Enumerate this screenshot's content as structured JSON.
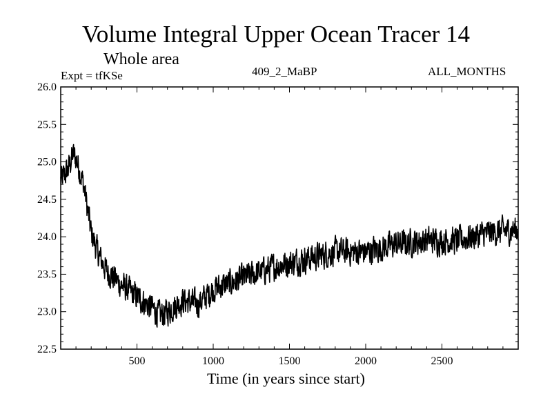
{
  "chart_data": {
    "type": "line",
    "title": "Volume Integral Upper Ocean Tracer 14",
    "subtitle": "Whole area",
    "annotations": {
      "expt": "Expt = tfKSe",
      "run": "409_2_MaBP",
      "months": "ALL_MONTHS"
    },
    "xlabel": "Time (in years since start)",
    "ylabel": "",
    "xlim": [
      0,
      3000
    ],
    "ylim": [
      22.5,
      26.0
    ],
    "xticks": [
      500,
      1000,
      1500,
      2000,
      2500
    ],
    "xtick_labels": [
      "500",
      "1000",
      "1500",
      "2000",
      "2500"
    ],
    "yticks": [
      22.5,
      23.0,
      23.5,
      24.0,
      24.5,
      25.0,
      25.5,
      26.0
    ],
    "ytick_labels": [
      "22.5",
      "23.0",
      "23.5",
      "24.0",
      "24.5",
      "25.0",
      "25.5",
      "26.0"
    ],
    "grid": false,
    "series": [
      {
        "name": "Tracer 14 volume integral",
        "color": "#000000",
        "x": [
          0,
          50,
          80,
          100,
          150,
          200,
          250,
          300,
          400,
          500,
          600,
          650,
          700,
          800,
          900,
          1000,
          1200,
          1400,
          1600,
          1800,
          2000,
          2200,
          2400,
          2600,
          2800,
          3000
        ],
        "y": [
          24.75,
          24.9,
          25.1,
          25.05,
          24.7,
          24.05,
          23.75,
          23.55,
          23.35,
          23.2,
          23.05,
          22.95,
          23.0,
          23.15,
          23.1,
          23.3,
          23.45,
          23.6,
          23.7,
          23.8,
          23.8,
          23.9,
          23.95,
          23.95,
          24.05,
          24.1
        ],
        "noise_amplitude": 0.25
      }
    ]
  }
}
